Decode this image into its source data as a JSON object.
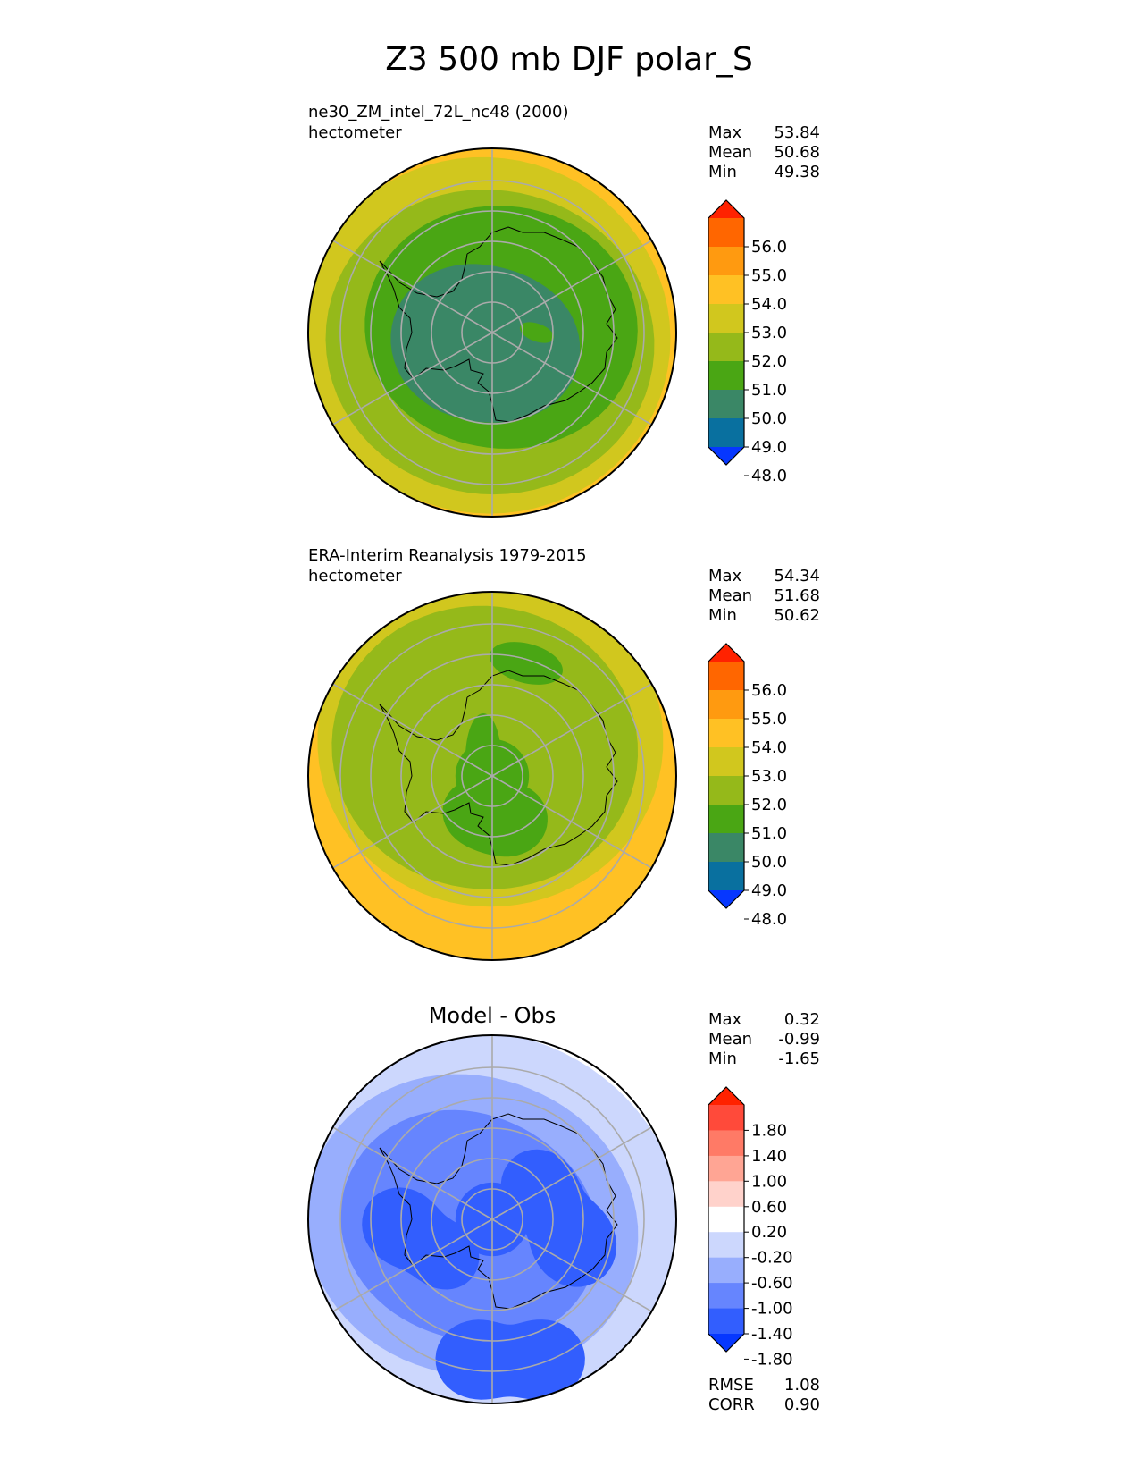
{
  "figure_title": "Z3 500 mb DJF polar_S",
  "chart_data": [
    {
      "type": "heatmap",
      "projection": "south polar stereographic",
      "title": "ne30_ZM_intel_72L_nc48 (2000)",
      "units": "hectometer",
      "stats": [
        {
          "label": "Max",
          "value": "53.84"
        },
        {
          "label": "Mean",
          "value": "50.68"
        },
        {
          "label": "Min",
          "value": "49.38"
        }
      ],
      "colorbar": {
        "ticks": [
          "56.0",
          "55.0",
          "54.0",
          "53.0",
          "52.0",
          "51.0",
          "50.0",
          "49.0",
          "48.0"
        ],
        "colors": [
          "#ff2200",
          "#ff6600",
          "#ff9a10",
          "#ffc124",
          "#d1c71e",
          "#95b91a",
          "#4aa614",
          "#3a8766",
          "#09709f",
          "#0637ff"
        ],
        "extend": "both"
      },
      "bands": [
        {
          "level": 53,
          "color": "#ffc124"
        },
        {
          "level": 52,
          "color": "#d1c71e"
        },
        {
          "level": 51,
          "color": "#95b91a"
        },
        {
          "level": 50,
          "color": "#4aa614"
        },
        {
          "level": 49.38,
          "color": "#3a8766"
        }
      ]
    },
    {
      "type": "heatmap",
      "projection": "south polar stereographic",
      "title": "ERA-Interim Reanalysis 1979-2015",
      "units": "hectometer",
      "stats": [
        {
          "label": "Max",
          "value": "54.34"
        },
        {
          "label": "Mean",
          "value": "51.68"
        },
        {
          "label": "Min",
          "value": "50.62"
        }
      ],
      "colorbar": {
        "ticks": [
          "56.0",
          "55.0",
          "54.0",
          "53.0",
          "52.0",
          "51.0",
          "50.0",
          "49.0",
          "48.0"
        ],
        "colors": [
          "#ff2200",
          "#ff6600",
          "#ff9a10",
          "#ffc124",
          "#d1c71e",
          "#95b91a",
          "#4aa614",
          "#3a8766",
          "#09709f",
          "#0637ff"
        ],
        "extend": "both"
      },
      "bands": [
        {
          "level": 54,
          "color": "#ffc124"
        },
        {
          "level": 53,
          "color": "#d1c71e"
        },
        {
          "level": 52,
          "color": "#95b91a"
        },
        {
          "level": 50.62,
          "color": "#4aa614"
        }
      ]
    },
    {
      "type": "heatmap",
      "projection": "south polar stereographic",
      "title": "Model - Obs",
      "units": "hectometer",
      "stats": [
        {
          "label": "Max",
          "value": "0.32"
        },
        {
          "label": "Mean",
          "value": "-0.99"
        },
        {
          "label": "Min",
          "value": "-1.65"
        }
      ],
      "colorbar": {
        "ticks": [
          "1.80",
          "1.40",
          "1.00",
          "0.60",
          "0.20",
          "-0.20",
          "-0.60",
          "-1.00",
          "-1.40",
          "-1.80"
        ],
        "colors": [
          "#ff2200",
          "#ff4a3a",
          "#ff7a66",
          "#ffa594",
          "#ffd2cb",
          "#ffffff",
          "#ccd7fd",
          "#98aefd",
          "#6685fe",
          "#325efe",
          "#0637ff"
        ],
        "extend": "both"
      },
      "bands": [
        {
          "level": -0.2,
          "color": "#ccd7fd"
        },
        {
          "level": -0.6,
          "color": "#98aefd"
        },
        {
          "level": -1.0,
          "color": "#6685fe"
        },
        {
          "level": -1.4,
          "color": "#325efe"
        }
      ],
      "metrics": [
        {
          "label": "RMSE",
          "value": "1.08"
        },
        {
          "label": "CORR",
          "value": "0.90"
        }
      ]
    }
  ]
}
